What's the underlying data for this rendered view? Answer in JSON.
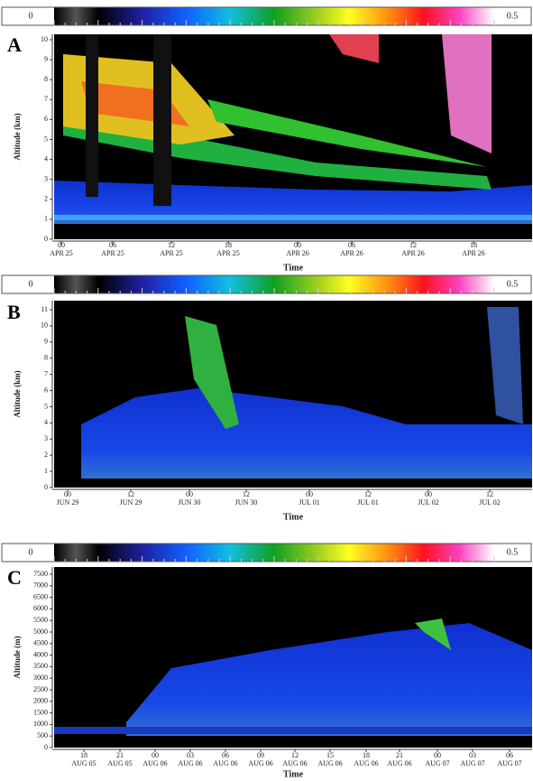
{
  "panels": [
    {
      "letter": "A",
      "colorbar_min": "0",
      "colorbar_max": "0.5",
      "y_title": "Altitude (km)",
      "y_ticks": [
        0,
        1,
        2,
        3,
        4,
        5,
        6,
        7,
        8,
        9,
        10
      ],
      "x_ticks": [
        {
          "hour": "00",
          "date": "APR 25"
        },
        {
          "hour": "06",
          "date": "APR 25"
        },
        {
          "hour": "12",
          "date": "APR 25"
        },
        {
          "hour": "18",
          "date": "APR 25"
        },
        {
          "hour": "00",
          "date": "APR 26"
        },
        {
          "hour": "06",
          "date": "APR 26"
        },
        {
          "hour": "12",
          "date": "APR 26"
        },
        {
          "hour": "18",
          "date": "APR 26"
        }
      ],
      "x_title": "Time"
    },
    {
      "letter": "B",
      "colorbar_min": "0",
      "colorbar_max": "0.5",
      "y_title": "Altitude (km)",
      "y_ticks": [
        0,
        1,
        2,
        3,
        4,
        5,
        6,
        7,
        8,
        9,
        10,
        11
      ],
      "x_ticks": [
        {
          "hour": "00",
          "date": "JUN 29"
        },
        {
          "hour": "12",
          "date": "JUN 29"
        },
        {
          "hour": "00",
          "date": "JUN 30"
        },
        {
          "hour": "12",
          "date": "JUN 30"
        },
        {
          "hour": "00",
          "date": "JUL 01"
        },
        {
          "hour": "12",
          "date": "JUL 01"
        },
        {
          "hour": "00",
          "date": "JUL 02"
        },
        {
          "hour": "12",
          "date": "JUL 02"
        }
      ],
      "x_title": "Time"
    },
    {
      "letter": "C",
      "colorbar_min": "0",
      "colorbar_max": "0.5",
      "y_title": "Altitude (m)",
      "y_ticks": [
        0,
        500,
        1000,
        1500,
        2000,
        2500,
        3000,
        3500,
        4000,
        4500,
        5000,
        5500,
        6000,
        6500,
        7000,
        7500
      ],
      "x_ticks": [
        {
          "hour": "18",
          "date": "AUG 05"
        },
        {
          "hour": "21",
          "date": "AUG 05"
        },
        {
          "hour": "00",
          "date": "AUG 06"
        },
        {
          "hour": "03",
          "date": "AUG 06"
        },
        {
          "hour": "06",
          "date": "AUG 06"
        },
        {
          "hour": "09",
          "date": "AUG 06"
        },
        {
          "hour": "12",
          "date": "AUG 06"
        },
        {
          "hour": "15",
          "date": "AUG 06"
        },
        {
          "hour": "18",
          "date": "AUG 06"
        },
        {
          "hour": "21",
          "date": "AUG 06"
        },
        {
          "hour": "00",
          "date": "AUG 07"
        },
        {
          "hour": "03",
          "date": "AUG 07"
        },
        {
          "hour": "06",
          "date": "AUG 07"
        }
      ],
      "x_title": "Time"
    }
  ]
}
